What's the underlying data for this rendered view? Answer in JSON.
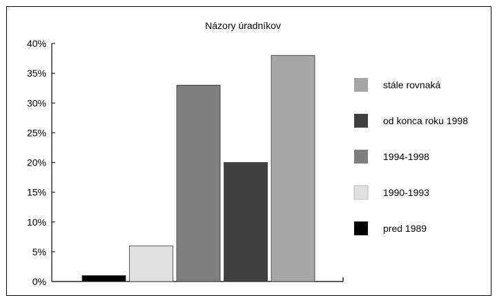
{
  "chart_data": {
    "type": "bar",
    "title": "Názory úradníkov",
    "xlabel": "",
    "ylabel": "",
    "ylim": [
      0,
      40
    ],
    "yticks": [
      "0%",
      "5%",
      "10%",
      "15%",
      "20%",
      "25%",
      "30%",
      "35%",
      "40%"
    ],
    "grid": false,
    "legend_position": "right",
    "series": [
      {
        "name": "pred 1989",
        "value": 1,
        "color": "#000000"
      },
      {
        "name": "1990-1993",
        "value": 6,
        "color": "#e0e0e0"
      },
      {
        "name": "1994-1998",
        "value": 33,
        "color": "#7f7f7f"
      },
      {
        "name": "od konca roku 1998",
        "value": 20,
        "color": "#404040"
      },
      {
        "name": "stále rovnaká",
        "value": 38,
        "color": "#a6a6a6"
      }
    ],
    "legend_order": [
      "stále rovnaká",
      "od konca roku 1998",
      "1994-1998",
      "1990-1993",
      "pred 1989"
    ]
  }
}
